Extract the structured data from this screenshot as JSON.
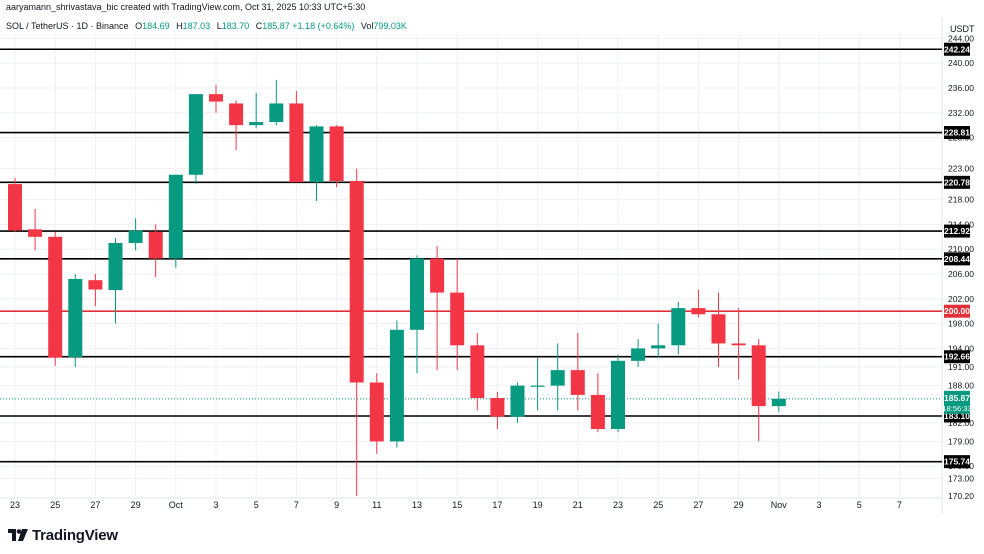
{
  "credit": "aaryamann_shrivastava_bic created with TradingView.com, Oct 31, 2025 10:33 UTC+5:30",
  "legend": {
    "symbol": "SOL / TetherUS · 1D · Binance",
    "o_label": "O",
    "o": "184.69",
    "h_label": "H",
    "h": "187.03",
    "l_label": "L",
    "l": "183.70",
    "c_label": "C",
    "c": "185.87",
    "change": "+1.18 (+0.64%)",
    "vol_label": "Vol",
    "vol": "799.03K"
  },
  "currency": "USDT",
  "brand": "TradingView",
  "colors": {
    "up": "#089981",
    "down": "#f23645",
    "level": "#000000",
    "key_level": "#e0303a",
    "grid": "#eef0f3"
  },
  "chart_data": {
    "type": "candlestick",
    "y_range": [
      170.2,
      244.7
    ],
    "y_ticks": [
      "244.00",
      "240.00",
      "236.00",
      "232.00",
      "228.00",
      "223.00",
      "218.00",
      "214.00",
      "210.00",
      "206.00",
      "202.00",
      "198.00",
      "194.00",
      "191.00",
      "188.00",
      "182.00",
      "179.00",
      "175.00",
      "173.00",
      "170.20"
    ],
    "x_ticks": [
      "23",
      "25",
      "27",
      "29",
      "Oct",
      "3",
      "5",
      "7",
      "9",
      "11",
      "13",
      "15",
      "17",
      "19",
      "21",
      "23",
      "25",
      "27",
      "29",
      "Nov",
      "3",
      "5",
      "7"
    ],
    "candles": [
      {
        "o": 220.5,
        "h": 221.5,
        "l": 212.8,
        "c": 213.0
      },
      {
        "o": 213.2,
        "h": 216.5,
        "l": 209.8,
        "c": 212.0
      },
      {
        "o": 212.0,
        "h": 212.8,
        "l": 191.2,
        "c": 192.5
      },
      {
        "o": 192.6,
        "h": 206.0,
        "l": 191.0,
        "c": 205.2
      },
      {
        "o": 205.0,
        "h": 206.0,
        "l": 200.8,
        "c": 203.5
      },
      {
        "o": 203.4,
        "h": 211.8,
        "l": 198.0,
        "c": 211.0
      },
      {
        "o": 211.0,
        "h": 215.0,
        "l": 209.8,
        "c": 213.0
      },
      {
        "o": 212.8,
        "h": 214.0,
        "l": 205.5,
        "c": 208.5
      },
      {
        "o": 208.5,
        "h": 222.0,
        "l": 207.0,
        "c": 222.0
      },
      {
        "o": 222.0,
        "h": 235.0,
        "l": 220.5,
        "c": 235.0
      },
      {
        "o": 235.0,
        "h": 236.5,
        "l": 232.0,
        "c": 233.8
      },
      {
        "o": 233.5,
        "h": 234.0,
        "l": 226.0,
        "c": 230.0
      },
      {
        "o": 230.0,
        "h": 235.2,
        "l": 229.5,
        "c": 230.5
      },
      {
        "o": 230.5,
        "h": 237.3,
        "l": 230.0,
        "c": 233.5
      },
      {
        "o": 233.5,
        "h": 235.5,
        "l": 220.8,
        "c": 220.8
      },
      {
        "o": 220.8,
        "h": 230.0,
        "l": 217.8,
        "c": 229.8
      },
      {
        "o": 229.8,
        "h": 230.0,
        "l": 220.0,
        "c": 221.0
      },
      {
        "o": 221.0,
        "h": 223.0,
        "l": 170.2,
        "c": 188.5
      },
      {
        "o": 188.5,
        "h": 190.0,
        "l": 177.0,
        "c": 179.0
      },
      {
        "o": 179.0,
        "h": 198.5,
        "l": 178.0,
        "c": 197.0
      },
      {
        "o": 197.0,
        "h": 209.0,
        "l": 190.0,
        "c": 208.5
      },
      {
        "o": 208.5,
        "h": 210.5,
        "l": 190.5,
        "c": 203.0
      },
      {
        "o": 203.0,
        "h": 208.5,
        "l": 190.5,
        "c": 194.5
      },
      {
        "o": 194.5,
        "h": 196.5,
        "l": 184.0,
        "c": 186.0
      },
      {
        "o": 186.0,
        "h": 187.0,
        "l": 181.0,
        "c": 183.0
      },
      {
        "o": 183.0,
        "h": 188.5,
        "l": 182.0,
        "c": 188.0
      },
      {
        "o": 188.0,
        "h": 192.5,
        "l": 184.0,
        "c": 188.0
      },
      {
        "o": 188.0,
        "h": 194.8,
        "l": 184.0,
        "c": 190.5
      },
      {
        "o": 190.5,
        "h": 196.5,
        "l": 184.0,
        "c": 186.5
      },
      {
        "o": 186.5,
        "h": 190.0,
        "l": 180.5,
        "c": 181.0
      },
      {
        "o": 181.0,
        "h": 193.0,
        "l": 180.5,
        "c": 192.0
      },
      {
        "o": 192.0,
        "h": 195.5,
        "l": 191.0,
        "c": 194.0
      },
      {
        "o": 194.0,
        "h": 198.0,
        "l": 192.5,
        "c": 194.5
      },
      {
        "o": 194.5,
        "h": 201.5,
        "l": 193.0,
        "c": 200.5
      },
      {
        "o": 200.5,
        "h": 203.5,
        "l": 199.0,
        "c": 199.5
      },
      {
        "o": 199.5,
        "h": 203.0,
        "l": 191.0,
        "c": 194.8
      },
      {
        "o": 194.8,
        "h": 200.5,
        "l": 189.0,
        "c": 194.5
      },
      {
        "o": 194.5,
        "h": 195.5,
        "l": 179.0,
        "c": 184.7
      },
      {
        "o": 184.69,
        "h": 187.03,
        "l": 183.7,
        "c": 185.87
      }
    ],
    "levels": [
      {
        "label": "242.24",
        "value": 242.24,
        "key": false
      },
      {
        "label": "228.81",
        "value": 228.81,
        "key": false
      },
      {
        "label": "220.78",
        "value": 220.78,
        "key": false
      },
      {
        "label": "212.92",
        "value": 212.92,
        "key": false
      },
      {
        "label": "208.44",
        "value": 208.44,
        "key": false
      },
      {
        "label": "200.00",
        "value": 200.0,
        "key": true
      },
      {
        "label": "192.66",
        "value": 192.66,
        "key": false
      },
      {
        "label": "183.10",
        "value": 183.1,
        "key": false
      },
      {
        "label": "175.74",
        "value": 175.74,
        "key": false
      }
    ],
    "last_price": {
      "label": "185.87",
      "value": 185.87,
      "countdown": "18:56:33"
    }
  }
}
